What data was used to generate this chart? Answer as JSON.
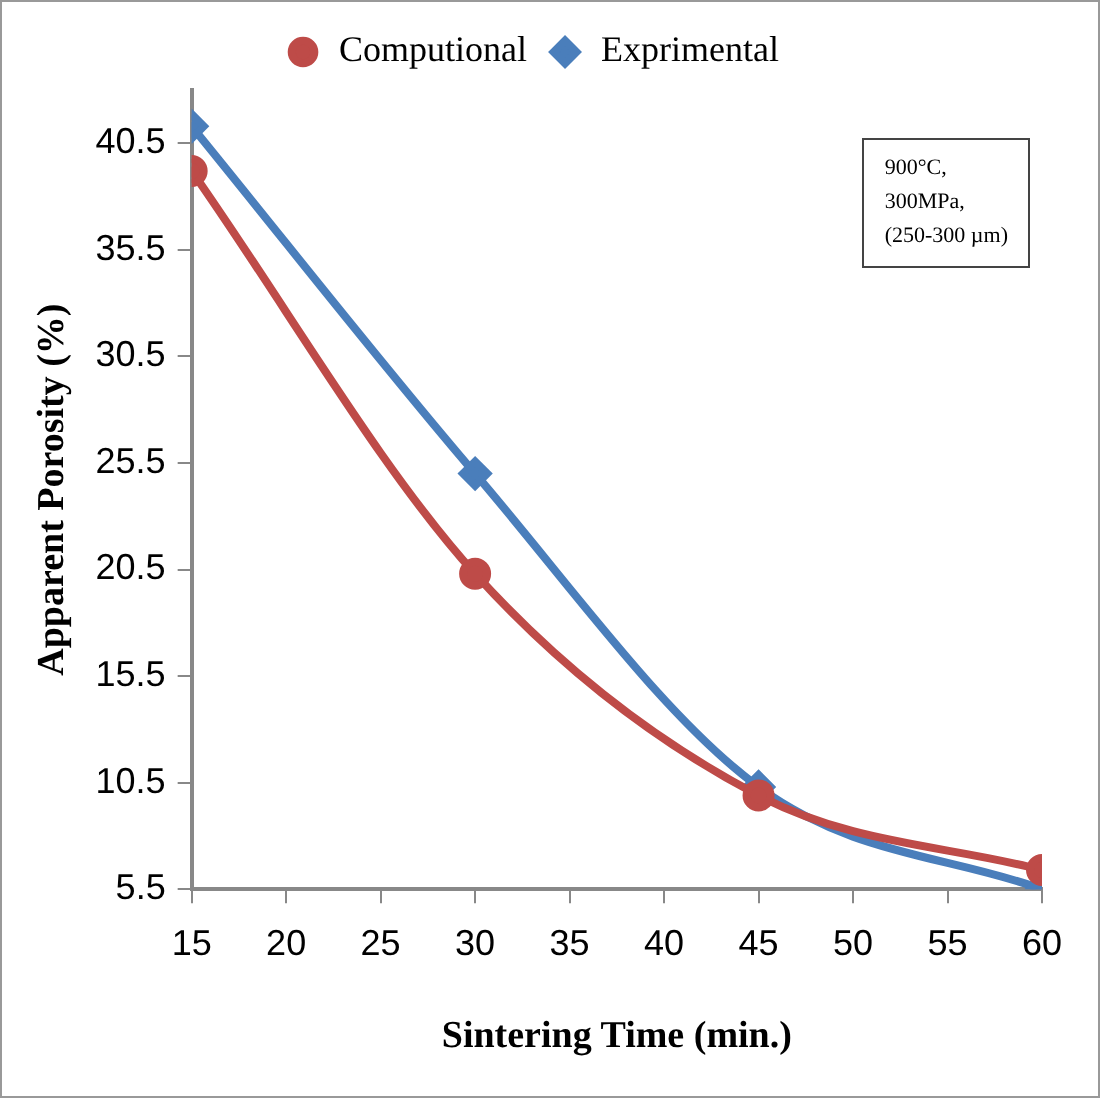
{
  "chart_data": {
    "type": "line",
    "xlabel": "Sintering Time (min.)",
    "ylabel": "Apparent Porosity (%)",
    "x": [
      15,
      30,
      45,
      60
    ],
    "series": [
      {
        "name": "Exprimental",
        "color": "#4a7ebb",
        "values": [
          41.3,
          25.0,
          10.3,
          5.5
        ],
        "marker": "diamond"
      },
      {
        "name": "Computional",
        "color": "#be4b48",
        "values": [
          39.2,
          20.3,
          9.9,
          6.4
        ],
        "marker": "circle"
      }
    ],
    "xlim": [
      15,
      60
    ],
    "xticks": [
      15,
      20,
      25,
      30,
      35,
      40,
      45,
      50,
      55,
      60
    ],
    "ylim": [
      5.5,
      43
    ],
    "yticks": [
      5.5,
      10.5,
      15.5,
      20.5,
      25.5,
      30.5,
      35.5,
      40.5
    ],
    "grid": false,
    "legend": "top",
    "line_style": "solid",
    "annotations": [
      "900°C,",
      "300MPa,",
      "(250-300 µm)"
    ]
  }
}
